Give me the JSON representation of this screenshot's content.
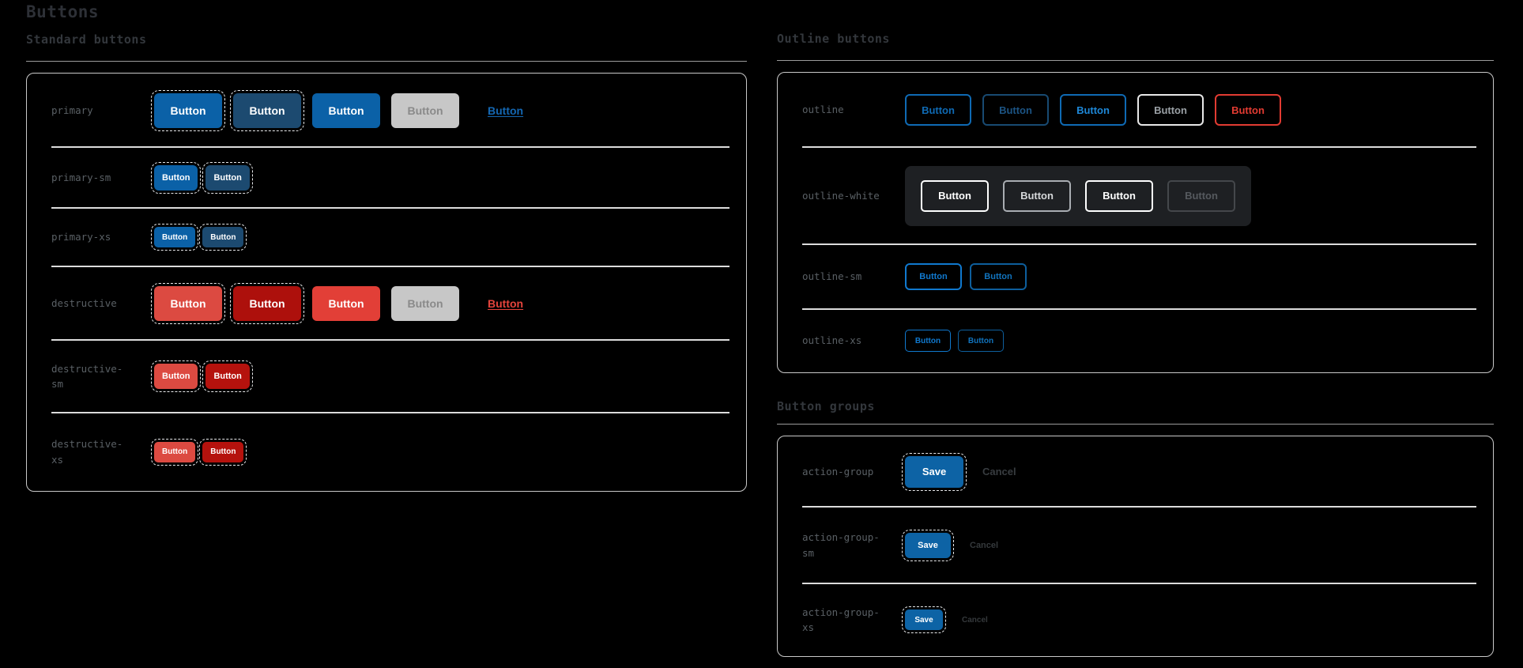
{
  "page": {
    "title": "Buttons"
  },
  "sections": {
    "standard": {
      "heading": "Standard buttons"
    },
    "outline": {
      "heading": "Outline buttons"
    },
    "groups": {
      "heading": "Button groups"
    }
  },
  "palette": {
    "background": "#000000",
    "panel_border": "#c9c9c9",
    "divider": "#dcdcdc",
    "heading_text": "#2d3036",
    "row_label_text": "#5a6065",
    "primary_blue": "#0b61a7",
    "primary_blue_dark": "#1c4a70",
    "destructive_red": "#dc4a41",
    "destructive_red_dark": "#ad100c",
    "disabled_bg": "#c7c7c7",
    "disabled_fg": "#8a8a8a",
    "link_blue": "#1467b2",
    "link_red": "#e4443c",
    "outline_blue": "#0f6ab4",
    "outline_blue_dark": "#184a72",
    "outline_blue_bright": "#1079cf",
    "outline_red": "#e23b32",
    "outline_white": "#ffffff",
    "save_blue": "#0d63a5",
    "cancel_gray": "#383c40",
    "dark_panel_bg": "#1e2023"
  },
  "standard_rows": [
    {
      "name": "primary",
      "buttons": [
        {
          "label": "Button",
          "kind": "solid",
          "size": "md",
          "bg": "#0b61a7",
          "fg": "#ffffff",
          "dashed": true
        },
        {
          "label": "Button",
          "kind": "solid",
          "size": "md",
          "bg": "#1c4a70",
          "fg": "#ffffff",
          "dashed": true
        },
        {
          "label": "Button",
          "kind": "solid",
          "size": "md",
          "bg": "#0b61a7",
          "fg": "#ffffff"
        },
        {
          "label": "Button",
          "kind": "solid",
          "size": "md",
          "bg": "#c7c7c7",
          "fg": "#8a8a8a"
        },
        {
          "label": "Button",
          "kind": "link",
          "size": "md",
          "fg": "#1467b2"
        }
      ]
    },
    {
      "name": "primary-sm",
      "buttons": [
        {
          "label": "Button",
          "kind": "solid",
          "size": "sm",
          "bg": "#0b61a7",
          "fg": "#ffffff",
          "dashed": true
        },
        {
          "label": "Button",
          "kind": "solid",
          "size": "sm",
          "bg": "#1c4a70",
          "fg": "#ffffff",
          "dashed": true
        }
      ]
    },
    {
      "name": "primary-xs",
      "buttons": [
        {
          "label": "Button",
          "kind": "solid",
          "size": "xs",
          "bg": "#0b61a7",
          "fg": "#ffffff",
          "dashed": true
        },
        {
          "label": "Button",
          "kind": "solid",
          "size": "xs",
          "bg": "#1c4a70",
          "fg": "#ffffff",
          "dashed": true
        }
      ]
    },
    {
      "name": "destructive",
      "buttons": [
        {
          "label": "Button",
          "kind": "solid",
          "size": "md",
          "bg": "#dc4a41",
          "fg": "#ffffff",
          "dashed": true
        },
        {
          "label": "Button",
          "kind": "solid",
          "size": "md",
          "bg": "#ad100c",
          "fg": "#ffffff",
          "dashed": true
        },
        {
          "label": "Button",
          "kind": "solid",
          "size": "md",
          "bg": "#e23f37",
          "fg": "#ffffff"
        },
        {
          "label": "Button",
          "kind": "solid",
          "size": "md",
          "bg": "#c7c7c7",
          "fg": "#8a8a8a"
        },
        {
          "label": "Button",
          "kind": "link",
          "size": "md",
          "fg": "#e4443c"
        }
      ]
    },
    {
      "name": "destructive-sm",
      "buttons": [
        {
          "label": "Button",
          "kind": "solid",
          "size": "sm",
          "bg": "#dc4a41",
          "fg": "#ffffff",
          "dashed": true
        },
        {
          "label": "Button",
          "kind": "solid",
          "size": "sm",
          "bg": "#b5120d",
          "fg": "#ffffff",
          "dashed": true
        }
      ]
    },
    {
      "name": "destructive-xs",
      "buttons": [
        {
          "label": "Button",
          "kind": "solid",
          "size": "xs",
          "bg": "#dc4a41",
          "fg": "#ffffff",
          "dashed": true
        },
        {
          "label": "Button",
          "kind": "solid",
          "size": "xs",
          "bg": "#b5120d",
          "fg": "#ffffff",
          "dashed": true
        }
      ]
    }
  ],
  "outline_rows": [
    {
      "name": "outline",
      "buttons": [
        {
          "label": "Button",
          "kind": "outline",
          "size": "omd",
          "border": "#0f6ab4",
          "fg": "#0f6ab4"
        },
        {
          "label": "Button",
          "kind": "outline",
          "size": "omd",
          "border": "#184a72",
          "fg": "#1c5484"
        },
        {
          "label": "Button",
          "kind": "outline",
          "size": "omd",
          "border": "#0f6ab4",
          "fg": "#1e88d8"
        },
        {
          "label": "Button",
          "kind": "outline",
          "size": "omd",
          "border": "#e8e8e8",
          "fg": "#9aa0a5"
        },
        {
          "label": "Button",
          "kind": "outline",
          "size": "omd",
          "border": "#e23b32",
          "fg": "#e23b32"
        }
      ]
    },
    {
      "name": "outline-white",
      "dark_panel": true,
      "buttons": [
        {
          "label": "Button",
          "kind": "outline",
          "size": "ow",
          "border": "#ffffff",
          "fg": "#ffffff"
        },
        {
          "label": "Button",
          "kind": "outline",
          "size": "ow",
          "border": "#a9adb2",
          "fg": "#d6d8da"
        },
        {
          "label": "Button",
          "kind": "outline",
          "size": "ow",
          "border": "#ffffff",
          "fg": "#ffffff",
          "thick": true
        },
        {
          "label": "Button",
          "kind": "outline",
          "size": "ow",
          "border": "#44474b",
          "fg": "#55595e"
        }
      ]
    },
    {
      "name": "outline-sm",
      "buttons": [
        {
          "label": "Button",
          "kind": "outline",
          "size": "osm",
          "border": "#1079cf",
          "fg": "#1079cf"
        },
        {
          "label": "Button",
          "kind": "outline",
          "size": "osm",
          "border": "#0e5f9d",
          "fg": "#1173bd"
        }
      ]
    },
    {
      "name": "outline-xs",
      "buttons": [
        {
          "label": "Button",
          "kind": "outline",
          "size": "oxs",
          "border": "#1079cf",
          "fg": "#1079cf"
        },
        {
          "label": "Button",
          "kind": "outline",
          "size": "oxs",
          "border": "#0e5f9d",
          "fg": "#1173bd"
        }
      ]
    }
  ],
  "group_rows": [
    {
      "name": "action-group",
      "buttons": [
        {
          "label": "Save",
          "kind": "solid",
          "size": "gmd",
          "bg": "#0d63a5",
          "fg": "#ffffff",
          "dashed": true
        },
        {
          "label": "Cancel",
          "kind": "text",
          "size": "gmd",
          "fg": "#383c40"
        }
      ]
    },
    {
      "name": "action-group-sm",
      "buttons": [
        {
          "label": "Save",
          "kind": "solid",
          "size": "gsm",
          "bg": "#0d63a5",
          "fg": "#ffffff",
          "dashed": true
        },
        {
          "label": "Cancel",
          "kind": "text",
          "size": "gsm",
          "fg": "#35393c"
        }
      ]
    },
    {
      "name": "action-group-xs",
      "buttons": [
        {
          "label": "Save",
          "kind": "solid",
          "size": "gxs",
          "bg": "#0d63a5",
          "fg": "#ffffff",
          "dashed": true
        },
        {
          "label": "Cancel",
          "kind": "text",
          "size": "gxs",
          "fg": "#35393c"
        }
      ]
    }
  ]
}
